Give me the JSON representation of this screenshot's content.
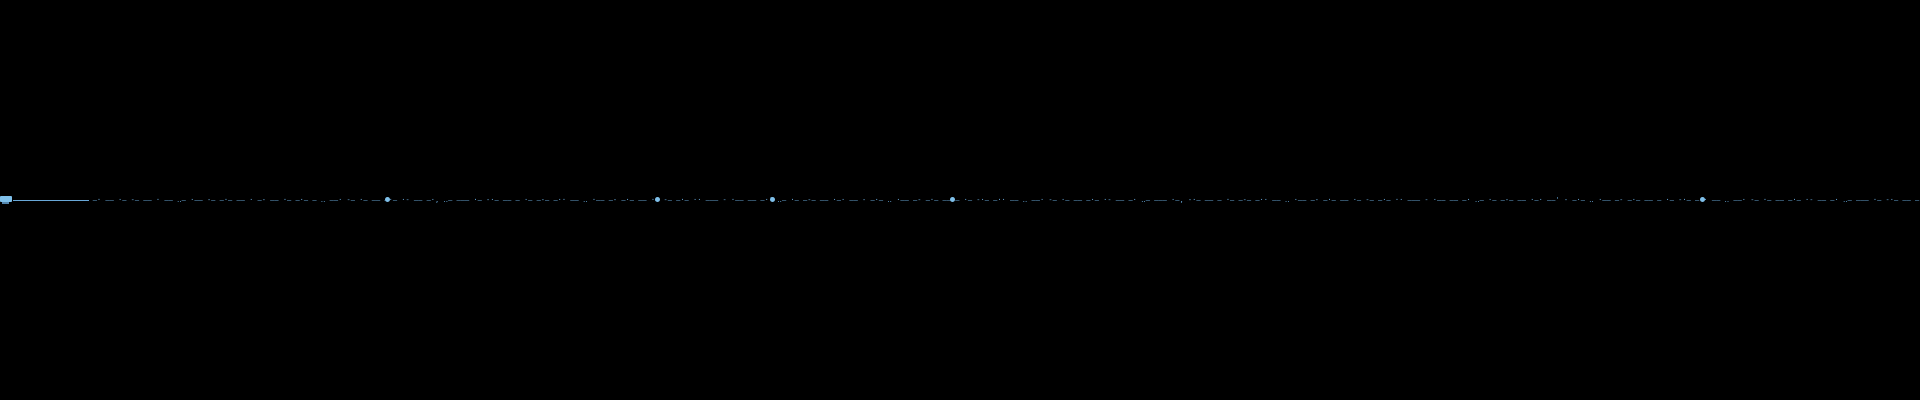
{
  "colors": {
    "bg": "#000000",
    "text-blue": "#69a8d8",
    "accent-blue": "#7fc0ea"
  },
  "micro_line": {
    "lead_glyphs": "█▓",
    "text": "                      –· —– ·– ‑— –– · —— ‥– ·–— ‑– —·– –— · –‑ —— ·– –·– — ‥ —–· ‑— ·— –– —·– ·‑ —— –·, ‥— –—– ·– ‑·– —— – ·— –‑– —·· –— ‥ ·–– —‑ –·– —— ·– ‑— –·— ·· —–– ‑ ·–— –– —·' ‥– ·— –‑– —— ·–· –— ‑ —·– ‥ ·–– —‑ –·– —— – ·— ‑·– —·· –— ‥ —–· ‑— ·— –– —·– ·‑ —— –· ‥— –—– ·–, ‑·– —— – ·— –‑– —·· –— ‥ ·–– —‑ –·– —— ·– ‑— –·— ·· —–– ‑ ·–— –– —· ‥– ·— –‑– —— ·–· –—' ‑ —·– ‥ ·–– —‑ –·– —— – ·— ‑·– —·· –— ‥ —–· ‑— ·— –– —·– ·‑ —— –· ‥— –—– ·– ‑·– —— – ·— –‑– —··, –— ‥ ·–– —‑ –·– —— ·– ‑— –·— ·· —–– ‑ ·–— –– —· ‥– ·— –‑– —— ·–· –— ‑ —·– ‥ ·–– —‑ –·– ——' – ·— ‑·– —·· –— ‥ —–· ‑— ·— –– —·– ·‑ —— –· ‥— –—– ·– ‑·– —— – ·— –‑– —·· –— ‥ ·–– —‑ –·–, —— ·– ‑— –·— ·· —–– ‑ ·–— –– —· ‥– ·— –‑– —— ·–· –— ‑ —·– ‥ ·–– —‑ –· —– ·– ‑— –– · —— ‥–' ·–— ‑– —·– –— · –‑ —— ·– –·– — ‥ —–· ‑— ·— –– —·– ·‑ —— –· ‥— –—– ·– ‑·– —— – ·— –‑– —··"
  },
  "dots": {
    "glyph": "●",
    "count": 5
  }
}
